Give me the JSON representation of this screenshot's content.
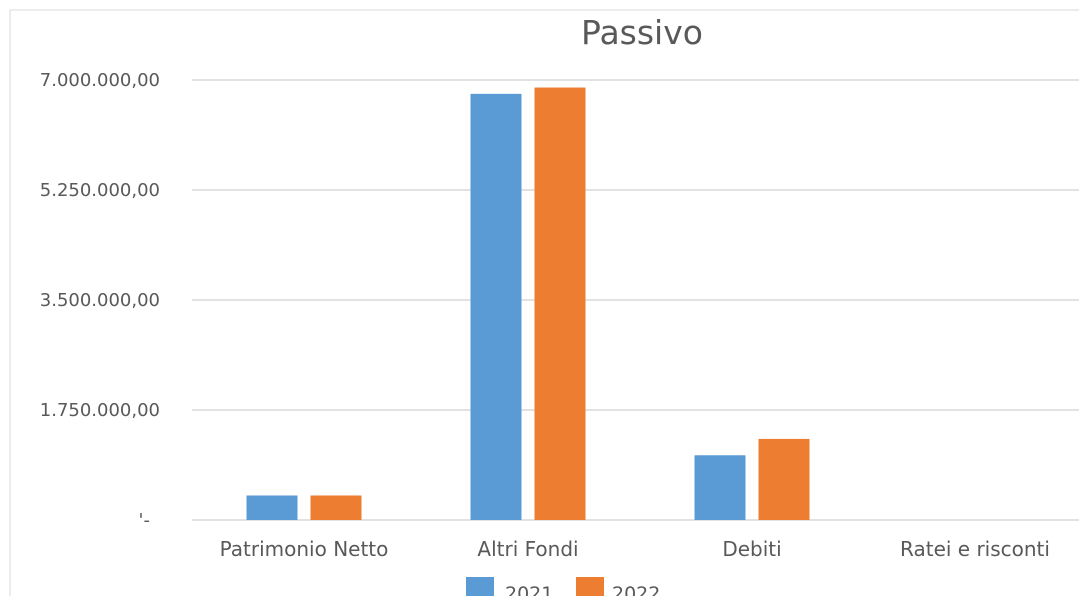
{
  "chart_data": {
    "type": "bar",
    "title": "Passivo",
    "categories": [
      "Patrimonio Netto",
      "Altri Fondi",
      "Debiti",
      "Ratei e risconti"
    ],
    "series": [
      {
        "name": "2021",
        "color": "#5B9BD5",
        "values": [
          390000,
          6780000,
          1030000,
          0
        ]
      },
      {
        "name": "2022",
        "color": "#ED7D31",
        "values": [
          390000,
          6880000,
          1290000,
          0
        ]
      }
    ],
    "ylim": [
      0,
      7000000
    ],
    "yticks": [
      {
        "value": 0,
        "label": "'-"
      },
      {
        "value": 1750000,
        "label": "1.750.000,00"
      },
      {
        "value": 3500000,
        "label": "3.500.000,00"
      },
      {
        "value": 5250000,
        "label": "5.250.000,00"
      },
      {
        "value": 7000000,
        "label": "7.000.000,00"
      }
    ],
    "grid": true,
    "legend_position": "bottom"
  }
}
